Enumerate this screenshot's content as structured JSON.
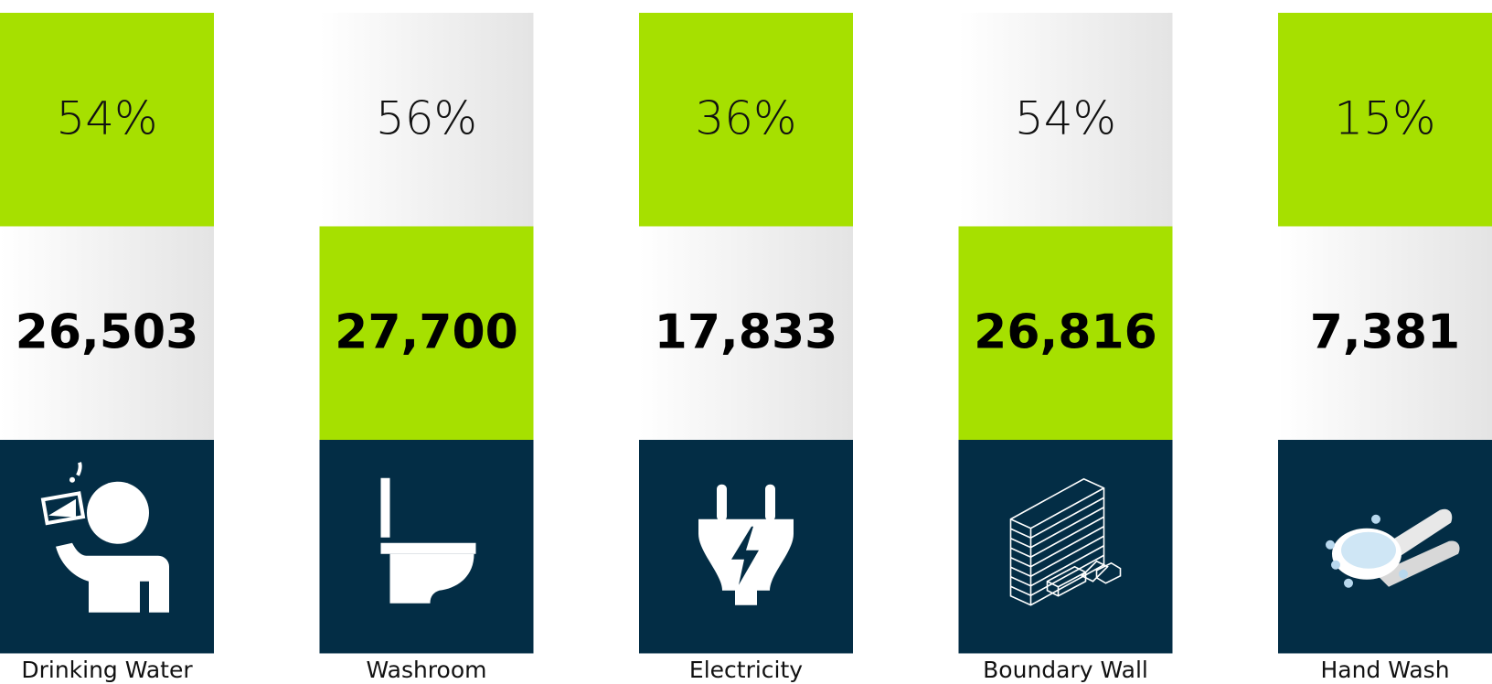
{
  "items": [
    {
      "percent": "54%",
      "count": "26,503",
      "label": "Drinking Water"
    },
    {
      "percent": "56%",
      "count": "27,700",
      "label": "Washroom"
    },
    {
      "percent": "36%",
      "count": "17,833",
      "label": "Electricity"
    },
    {
      "percent": "54%",
      "count": "26,816",
      "label": "Boundary Wall"
    },
    {
      "percent": "15%",
      "count": "7,381",
      "label": "Hand Wash"
    }
  ]
}
